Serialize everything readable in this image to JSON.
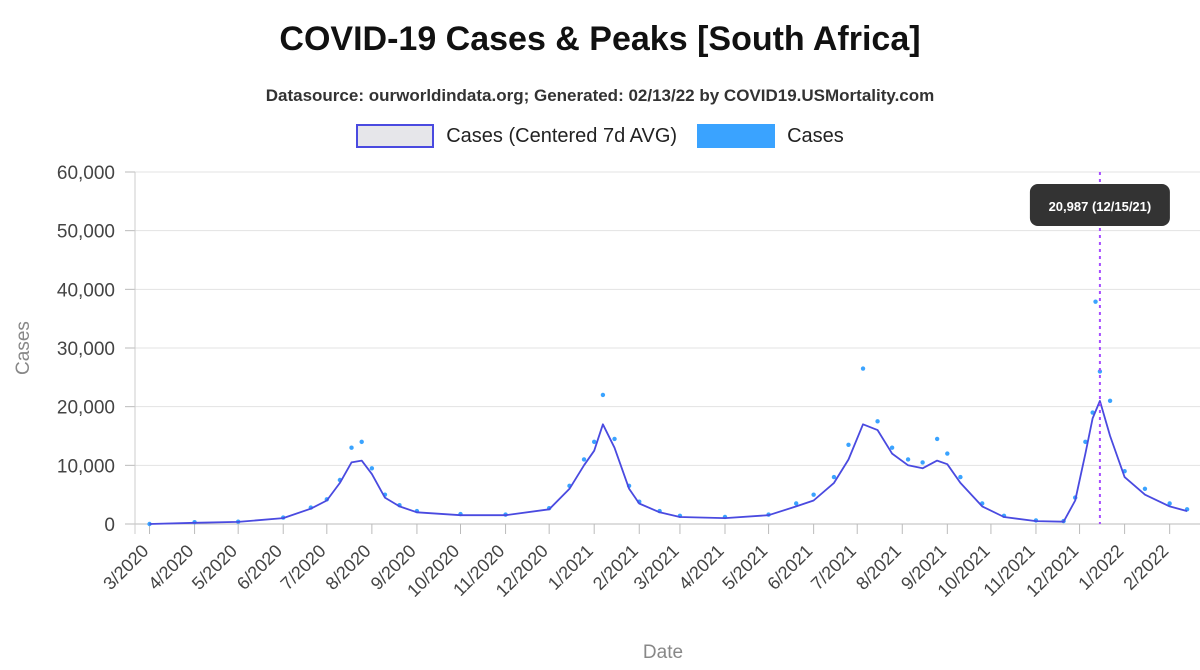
{
  "title": "COVID-19 Cases & Peaks [South Africa]",
  "subtitle": "Datasource: ourworldindata.org; Generated: 02/13/22 by COVID19.USMortality.com",
  "legend": {
    "avg_label": "Cases (Centered 7d AVG)",
    "cases_label": "Cases"
  },
  "colors": {
    "avg_line": "#4a4ae0",
    "cases_dots": "#3aa3ff",
    "peak_line": "#a64dff",
    "grid": "#e3e3e3",
    "tooltip_bg": "#333333"
  },
  "peak_tooltip": "20,987 (12/15/21)",
  "chart_data": {
    "type": "line",
    "xlabel": "Date",
    "ylabel": "Cases",
    "ylim": [
      0,
      60000
    ],
    "yticks": [
      "0",
      "10,000",
      "20,000",
      "30,000",
      "40,000",
      "50,000",
      "60,000"
    ],
    "xticks": [
      "3/2020",
      "4/2020",
      "5/2020",
      "6/2020",
      "7/2020",
      "8/2020",
      "9/2020",
      "10/2020",
      "11/2020",
      "12/2020",
      "1/2021",
      "2/2021",
      "3/2021",
      "4/2021",
      "5/2021",
      "6/2021",
      "7/2021",
      "8/2021",
      "9/2021",
      "10/2021",
      "11/2021",
      "12/2021",
      "1/2022",
      "2/2022"
    ],
    "grid": true,
    "legend_position": "top",
    "peak": {
      "date": "2021-12-15",
      "value": 20987
    },
    "series": [
      {
        "name": "Cases (Centered 7d AVG)",
        "points": [
          [
            "2020-03-01",
            0
          ],
          [
            "2020-04-01",
            200
          ],
          [
            "2020-05-01",
            350
          ],
          [
            "2020-06-01",
            1000
          ],
          [
            "2020-06-20",
            2600
          ],
          [
            "2020-07-01",
            4000
          ],
          [
            "2020-07-10",
            7000
          ],
          [
            "2020-07-18",
            10500
          ],
          [
            "2020-07-25",
            10800
          ],
          [
            "2020-08-01",
            8500
          ],
          [
            "2020-08-10",
            4500
          ],
          [
            "2020-08-20",
            3000
          ],
          [
            "2020-09-01",
            2000
          ],
          [
            "2020-10-01",
            1500
          ],
          [
            "2020-11-01",
            1500
          ],
          [
            "2020-12-01",
            2500
          ],
          [
            "2020-12-15",
            6000
          ],
          [
            "2020-12-25",
            10000
          ],
          [
            "2021-01-01",
            12500
          ],
          [
            "2021-01-07",
            17000
          ],
          [
            "2021-01-15",
            13000
          ],
          [
            "2021-01-25",
            6000
          ],
          [
            "2021-02-01",
            3500
          ],
          [
            "2021-02-15",
            2000
          ],
          [
            "2021-03-01",
            1200
          ],
          [
            "2021-04-01",
            1000
          ],
          [
            "2021-05-01",
            1500
          ],
          [
            "2021-05-20",
            3000
          ],
          [
            "2021-06-01",
            4000
          ],
          [
            "2021-06-15",
            7000
          ],
          [
            "2021-06-25",
            11000
          ],
          [
            "2021-07-05",
            17000
          ],
          [
            "2021-07-15",
            16000
          ],
          [
            "2021-07-25",
            12000
          ],
          [
            "2021-08-05",
            10000
          ],
          [
            "2021-08-15",
            9500
          ],
          [
            "2021-08-25",
            10800
          ],
          [
            "2021-09-01",
            10200
          ],
          [
            "2021-09-10",
            7000
          ],
          [
            "2021-09-25",
            3000
          ],
          [
            "2021-10-10",
            1200
          ],
          [
            "2021-11-01",
            500
          ],
          [
            "2021-11-20",
            400
          ],
          [
            "2021-11-28",
            4000
          ],
          [
            "2021-12-05",
            12000
          ],
          [
            "2021-12-10",
            18000
          ],
          [
            "2021-12-15",
            20987
          ],
          [
            "2021-12-22",
            15000
          ],
          [
            "2022-01-01",
            8000
          ],
          [
            "2022-01-15",
            5000
          ],
          [
            "2022-02-01",
            3000
          ],
          [
            "2022-02-13",
            2200
          ]
        ]
      },
      {
        "name": "Cases",
        "points": [
          [
            "2020-03-01",
            0
          ],
          [
            "2020-04-01",
            300
          ],
          [
            "2020-05-01",
            400
          ],
          [
            "2020-06-01",
            1100
          ],
          [
            "2020-06-20",
            2800
          ],
          [
            "2020-07-01",
            4200
          ],
          [
            "2020-07-10",
            7500
          ],
          [
            "2020-07-18",
            13000
          ],
          [
            "2020-07-25",
            14000
          ],
          [
            "2020-08-01",
            9500
          ],
          [
            "2020-08-10",
            5000
          ],
          [
            "2020-08-20",
            3200
          ],
          [
            "2020-09-01",
            2200
          ],
          [
            "2020-10-01",
            1700
          ],
          [
            "2020-11-01",
            1600
          ],
          [
            "2020-12-01",
            2700
          ],
          [
            "2020-12-15",
            6500
          ],
          [
            "2020-12-25",
            11000
          ],
          [
            "2021-01-01",
            14000
          ],
          [
            "2021-01-07",
            22000
          ],
          [
            "2021-01-15",
            14500
          ],
          [
            "2021-01-25",
            6500
          ],
          [
            "2021-02-01",
            3800
          ],
          [
            "2021-02-15",
            2200
          ],
          [
            "2021-03-01",
            1400
          ],
          [
            "2021-04-01",
            1200
          ],
          [
            "2021-05-01",
            1600
          ],
          [
            "2021-05-20",
            3500
          ],
          [
            "2021-06-01",
            5000
          ],
          [
            "2021-06-15",
            8000
          ],
          [
            "2021-06-25",
            13500
          ],
          [
            "2021-07-05",
            26500
          ],
          [
            "2021-07-15",
            17500
          ],
          [
            "2021-07-25",
            13000
          ],
          [
            "2021-08-05",
            11000
          ],
          [
            "2021-08-15",
            10500
          ],
          [
            "2021-08-25",
            14500
          ],
          [
            "2021-09-01",
            12000
          ],
          [
            "2021-09-10",
            8000
          ],
          [
            "2021-09-25",
            3500
          ],
          [
            "2021-10-10",
            1400
          ],
          [
            "2021-11-01",
            600
          ],
          [
            "2021-11-20",
            500
          ],
          [
            "2021-11-28",
            4500
          ],
          [
            "2021-12-05",
            14000
          ],
          [
            "2021-12-10",
            19000
          ],
          [
            "2021-12-12",
            37900
          ],
          [
            "2021-12-15",
            26000
          ],
          [
            "2021-12-22",
            21000
          ],
          [
            "2022-01-01",
            9000
          ],
          [
            "2022-01-15",
            6000
          ],
          [
            "2022-02-01",
            3500
          ],
          [
            "2022-02-13",
            2500
          ]
        ]
      }
    ]
  }
}
